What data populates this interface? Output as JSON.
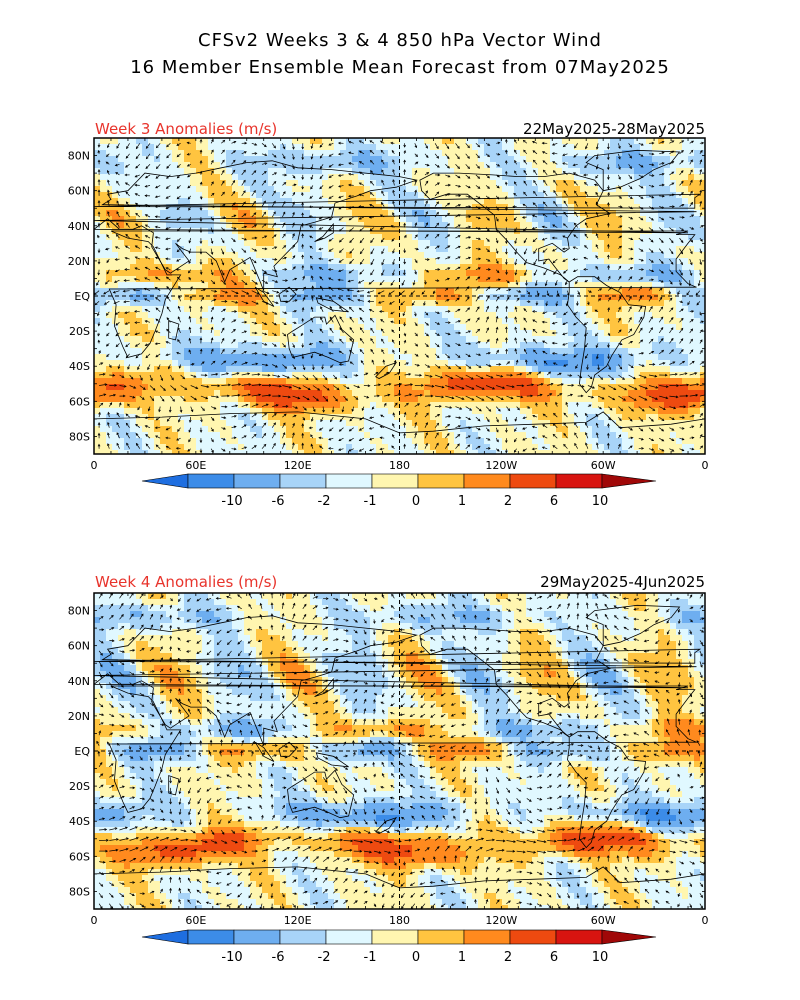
{
  "title": {
    "line1": "CFSv2 Weeks 3 & 4 850 hPa Vector Wind",
    "line2": "16 Member Ensemble Mean Forecast from 07May2025"
  },
  "lat_labels": [
    "80N",
    "60N",
    "40N",
    "20N",
    "EQ",
    "20S",
    "40S",
    "60S",
    "80S"
  ],
  "lon_labels": [
    "0",
    "60E",
    "120E",
    "180",
    "120W",
    "60W",
    "0"
  ],
  "panels": [
    {
      "id": "week3",
      "label": "Week 3 Anomalies (m/s)",
      "dates": "22May2025-28May2025",
      "seed": 3
    },
    {
      "id": "week4",
      "label": "Week 4 Anomalies (m/s)",
      "dates": "29May2025-4Jun2025",
      "seed": 7
    }
  ],
  "colorbar": {
    "labels": [
      "-10",
      "-6",
      "-2",
      "-1",
      "0",
      "1",
      "2",
      "6",
      "10"
    ],
    "colors": [
      "#1e6ee0",
      "#3c8ce8",
      "#6eaef0",
      "#a8d4f8",
      "#e0f8ff",
      "#fff6b0",
      "#ffc440",
      "#ff8a1e",
      "#ee4a10",
      "#d81410",
      "#a00808"
    ]
  },
  "colors": {
    "label_red": "#e8342c",
    "dashed_line": "#000000"
  }
}
